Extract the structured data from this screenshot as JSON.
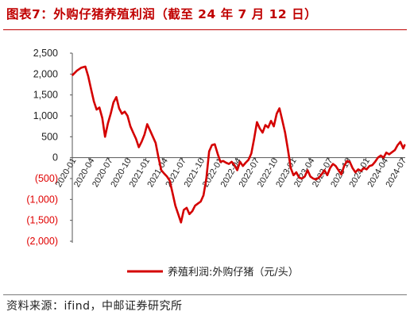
{
  "title": "图表7：外购仔猪养殖利润（截至 24 年 7 月 12 日）",
  "source": "资料来源：ifind，中邮证券研究所",
  "chart_data": {
    "type": "line",
    "x_ticks": [
      "2020-01",
      "2020-04",
      "2020-07",
      "2020-10",
      "2021-01",
      "2021-04",
      "2021-07",
      "2021-10",
      "2022-01",
      "2022-04",
      "2022-07",
      "2022-10",
      "2023-01",
      "2023-04",
      "2023-07",
      "2023-10",
      "2024-01",
      "2024-04",
      "2024-07"
    ],
    "y_ticks": [
      {
        "label": "2,500",
        "value": 2500,
        "color": "#222222"
      },
      {
        "label": "2,000",
        "value": 2000,
        "color": "#222222"
      },
      {
        "label": "1,500",
        "value": 1500,
        "color": "#222222"
      },
      {
        "label": "1,000",
        "value": 1000,
        "color": "#222222"
      },
      {
        "label": "500",
        "value": 500,
        "color": "#222222"
      },
      {
        "label": "0",
        "value": 0,
        "color": "#222222"
      },
      {
        "label": "(500)",
        "value": -500,
        "color": "#e00000"
      },
      {
        "label": "(1,000)",
        "value": -1000,
        "color": "#e00000"
      },
      {
        "label": "(1,500)",
        "value": -1500,
        "color": "#e00000"
      },
      {
        "label": "(2,000)",
        "value": -2000,
        "color": "#e00000"
      }
    ],
    "ylim": [
      -2000,
      2500
    ],
    "line_color": "#d40000",
    "series": [
      {
        "name": "养殖利润:外购仔猪（元/头）",
        "points": [
          [
            "2020-01-03",
            1980
          ],
          [
            "2020-01-24",
            2080
          ],
          [
            "2020-02-14",
            2150
          ],
          [
            "2020-03-06",
            2180
          ],
          [
            "2020-03-20",
            1950
          ],
          [
            "2020-04-03",
            1650
          ],
          [
            "2020-04-17",
            1350
          ],
          [
            "2020-05-01",
            1150
          ],
          [
            "2020-05-15",
            1200
          ],
          [
            "2020-05-29",
            950
          ],
          [
            "2020-06-12",
            500
          ],
          [
            "2020-06-26",
            820
          ],
          [
            "2020-07-10",
            1050
          ],
          [
            "2020-07-24",
            1320
          ],
          [
            "2020-08-07",
            1450
          ],
          [
            "2020-08-21",
            1180
          ],
          [
            "2020-09-04",
            1050
          ],
          [
            "2020-09-18",
            1100
          ],
          [
            "2020-10-02",
            1000
          ],
          [
            "2020-10-16",
            750
          ],
          [
            "2020-10-30",
            600
          ],
          [
            "2020-11-13",
            450
          ],
          [
            "2020-11-27",
            250
          ],
          [
            "2020-12-11",
            380
          ],
          [
            "2020-12-25",
            550
          ],
          [
            "2021-01-08",
            800
          ],
          [
            "2021-01-22",
            650
          ],
          [
            "2021-02-05",
            500
          ],
          [
            "2021-02-19",
            350
          ],
          [
            "2021-03-05",
            0
          ],
          [
            "2021-03-19",
            -300
          ],
          [
            "2021-04-02",
            -380
          ],
          [
            "2021-04-16",
            -450
          ],
          [
            "2021-04-30",
            -550
          ],
          [
            "2021-05-14",
            -850
          ],
          [
            "2021-05-28",
            -1150
          ],
          [
            "2021-06-11",
            -1350
          ],
          [
            "2021-06-25",
            -1550
          ],
          [
            "2021-07-09",
            -1250
          ],
          [
            "2021-07-23",
            -1200
          ],
          [
            "2021-08-06",
            -1350
          ],
          [
            "2021-08-20",
            -1280
          ],
          [
            "2021-09-03",
            -1150
          ],
          [
            "2021-09-17",
            -1100
          ],
          [
            "2021-10-01",
            -1050
          ],
          [
            "2021-10-15",
            -900
          ],
          [
            "2021-10-29",
            -500
          ],
          [
            "2021-11-12",
            150
          ],
          [
            "2021-11-26",
            300
          ],
          [
            "2021-12-10",
            320
          ],
          [
            "2021-12-24",
            100
          ],
          [
            "2022-01-07",
            -100
          ],
          [
            "2022-01-21",
            -80
          ],
          [
            "2022-02-04",
            -120
          ],
          [
            "2022-02-18",
            -150
          ],
          [
            "2022-03-04",
            -100
          ],
          [
            "2022-03-18",
            -180
          ],
          [
            "2022-04-01",
            -300
          ],
          [
            "2022-04-15",
            -100
          ],
          [
            "2022-04-29",
            -200
          ],
          [
            "2022-05-13",
            -120
          ],
          [
            "2022-05-27",
            -50
          ],
          [
            "2022-06-10",
            100
          ],
          [
            "2022-06-24",
            450
          ],
          [
            "2022-07-08",
            850
          ],
          [
            "2022-07-22",
            700
          ],
          [
            "2022-08-05",
            600
          ],
          [
            "2022-08-19",
            780
          ],
          [
            "2022-09-02",
            720
          ],
          [
            "2022-09-16",
            880
          ],
          [
            "2022-09-30",
            750
          ],
          [
            "2022-10-14",
            1050
          ],
          [
            "2022-10-28",
            1180
          ],
          [
            "2022-11-11",
            900
          ],
          [
            "2022-11-25",
            600
          ],
          [
            "2022-12-09",
            200
          ],
          [
            "2022-12-23",
            -250
          ],
          [
            "2023-01-06",
            -420
          ],
          [
            "2023-01-20",
            -350
          ],
          [
            "2023-02-03",
            -480
          ],
          [
            "2023-02-17",
            -500
          ],
          [
            "2023-03-03",
            -450
          ],
          [
            "2023-03-17",
            -300
          ],
          [
            "2023-03-31",
            -450
          ],
          [
            "2023-04-14",
            -500
          ],
          [
            "2023-04-28",
            -520
          ],
          [
            "2023-05-12",
            -480
          ],
          [
            "2023-05-26",
            -400
          ],
          [
            "2023-06-09",
            -300
          ],
          [
            "2023-06-23",
            -420
          ],
          [
            "2023-07-07",
            -250
          ],
          [
            "2023-07-21",
            -150
          ],
          [
            "2023-08-04",
            -200
          ],
          [
            "2023-08-18",
            -300
          ],
          [
            "2023-09-01",
            -400
          ],
          [
            "2023-09-15",
            -200
          ],
          [
            "2023-09-29",
            -80
          ],
          [
            "2023-10-13",
            -100
          ],
          [
            "2023-10-27",
            -250
          ],
          [
            "2023-11-10",
            -350
          ],
          [
            "2023-11-24",
            -280
          ],
          [
            "2023-12-08",
            -320
          ],
          [
            "2023-12-22",
            -250
          ],
          [
            "2024-01-05",
            -280
          ],
          [
            "2024-01-19",
            -200
          ],
          [
            "2024-02-02",
            -180
          ],
          [
            "2024-02-16",
            -100
          ],
          [
            "2024-03-01",
            0
          ],
          [
            "2024-03-15",
            50
          ],
          [
            "2024-03-29",
            0
          ],
          [
            "2024-04-12",
            120
          ],
          [
            "2024-04-26",
            80
          ],
          [
            "2024-05-10",
            130
          ],
          [
            "2024-05-24",
            180
          ],
          [
            "2024-06-07",
            300
          ],
          [
            "2024-06-21",
            380
          ],
          [
            "2024-07-05",
            220
          ],
          [
            "2024-07-12",
            300
          ]
        ]
      }
    ]
  }
}
